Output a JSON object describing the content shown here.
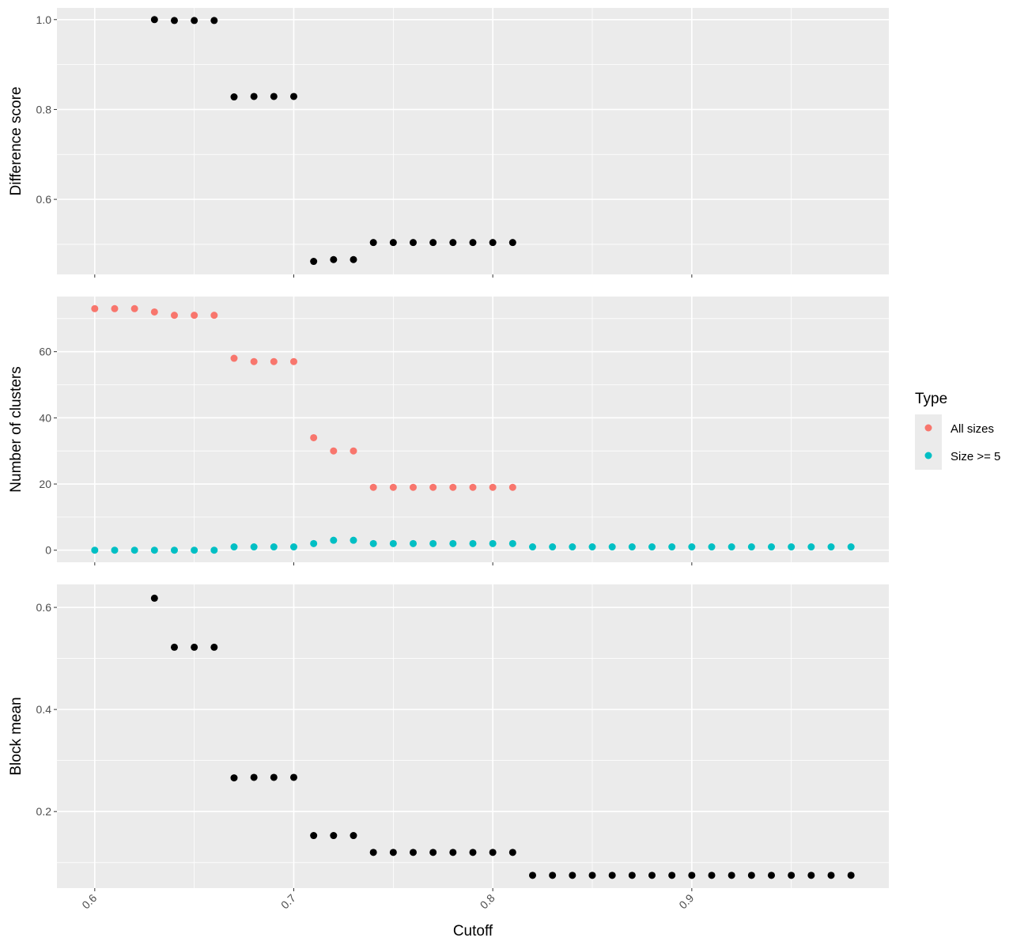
{
  "chart_data": [
    {
      "type": "scatter",
      "title": "",
      "xlabel": "",
      "ylabel": "Difference score",
      "xlim": [
        0.581,
        0.999
      ],
      "ylim": [
        0.433,
        1.026
      ],
      "x_ticks": [
        0.6,
        0.7,
        0.8,
        0.9
      ],
      "y_ticks": [
        0.6,
        0.8,
        1.0
      ],
      "y_tick_labels": [
        "0.6",
        "0.8",
        "1.0"
      ],
      "grid": true,
      "series": [
        {
          "color": "#000000",
          "points": [
            [
              0.63,
              1.0
            ],
            [
              0.64,
              0.998
            ],
            [
              0.65,
              0.998
            ],
            [
              0.66,
              0.998
            ],
            [
              0.67,
              0.828
            ],
            [
              0.68,
              0.829
            ],
            [
              0.69,
              0.829
            ],
            [
              0.7,
              0.829
            ],
            [
              0.71,
              0.462
            ],
            [
              0.72,
              0.466
            ],
            [
              0.73,
              0.466
            ],
            [
              0.74,
              0.504
            ],
            [
              0.75,
              0.504
            ],
            [
              0.76,
              0.504
            ],
            [
              0.77,
              0.504
            ],
            [
              0.78,
              0.504
            ],
            [
              0.79,
              0.504
            ],
            [
              0.8,
              0.504
            ],
            [
              0.81,
              0.504
            ]
          ]
        }
      ]
    },
    {
      "type": "scatter",
      "title": "",
      "xlabel": "",
      "ylabel": "Number of clusters",
      "xlim": [
        0.581,
        0.999
      ],
      "ylim": [
        -3.65,
        76.65
      ],
      "x_ticks": [
        0.6,
        0.7,
        0.8,
        0.9
      ],
      "y_ticks": [
        0,
        20,
        40,
        60
      ],
      "y_tick_labels": [
        "0",
        "20",
        "40",
        "60"
      ],
      "grid": true,
      "series": [
        {
          "name": "All sizes",
          "color": "#F8766D",
          "points": [
            [
              0.6,
              73
            ],
            [
              0.61,
              73
            ],
            [
              0.62,
              73
            ],
            [
              0.63,
              72
            ],
            [
              0.64,
              71
            ],
            [
              0.65,
              71
            ],
            [
              0.66,
              71
            ],
            [
              0.67,
              58
            ],
            [
              0.68,
              57
            ],
            [
              0.69,
              57
            ],
            [
              0.7,
              57
            ],
            [
              0.71,
              34
            ],
            [
              0.72,
              30
            ],
            [
              0.73,
              30
            ],
            [
              0.74,
              19
            ],
            [
              0.75,
              19
            ],
            [
              0.76,
              19
            ],
            [
              0.77,
              19
            ],
            [
              0.78,
              19
            ],
            [
              0.79,
              19
            ],
            [
              0.8,
              19
            ],
            [
              0.81,
              19
            ]
          ]
        },
        {
          "name": "Size >= 5",
          "color": "#00BFC4",
          "points": [
            [
              0.6,
              0
            ],
            [
              0.61,
              0
            ],
            [
              0.62,
              0
            ],
            [
              0.63,
              0
            ],
            [
              0.64,
              0
            ],
            [
              0.65,
              0
            ],
            [
              0.66,
              0
            ],
            [
              0.67,
              1
            ],
            [
              0.68,
              1
            ],
            [
              0.69,
              1
            ],
            [
              0.7,
              1
            ],
            [
              0.71,
              2
            ],
            [
              0.72,
              3
            ],
            [
              0.73,
              3
            ],
            [
              0.74,
              2
            ],
            [
              0.75,
              2
            ],
            [
              0.76,
              2
            ],
            [
              0.77,
              2
            ],
            [
              0.78,
              2
            ],
            [
              0.79,
              2
            ],
            [
              0.8,
              2
            ],
            [
              0.81,
              2
            ],
            [
              0.82,
              1
            ],
            [
              0.83,
              1
            ],
            [
              0.84,
              1
            ],
            [
              0.85,
              1
            ],
            [
              0.86,
              1
            ],
            [
              0.87,
              1
            ],
            [
              0.88,
              1
            ],
            [
              0.89,
              1
            ],
            [
              0.9,
              1
            ],
            [
              0.91,
              1
            ],
            [
              0.92,
              1
            ],
            [
              0.93,
              1
            ],
            [
              0.94,
              1
            ],
            [
              0.95,
              1
            ],
            [
              0.96,
              1
            ],
            [
              0.97,
              1
            ],
            [
              0.98,
              1
            ]
          ]
        }
      ]
    },
    {
      "type": "scatter",
      "title": "",
      "xlabel": "Cutoff",
      "ylabel": "Block mean",
      "xlim": [
        0.581,
        0.999
      ],
      "ylim": [
        0.05,
        0.645
      ],
      "x_ticks": [
        0.6,
        0.7,
        0.8,
        0.9
      ],
      "x_tick_labels": [
        "0.6",
        "0.7",
        "0.8",
        "0.9"
      ],
      "y_ticks": [
        0.2,
        0.4,
        0.6
      ],
      "y_tick_labels": [
        "0.2",
        "0.4",
        "0.6"
      ],
      "grid": true,
      "series": [
        {
          "color": "#000000",
          "points": [
            [
              0.63,
              0.618
            ],
            [
              0.64,
              0.522
            ],
            [
              0.65,
              0.522
            ],
            [
              0.66,
              0.522
            ],
            [
              0.67,
              0.266
            ],
            [
              0.68,
              0.267
            ],
            [
              0.69,
              0.267
            ],
            [
              0.7,
              0.267
            ],
            [
              0.71,
              0.153
            ],
            [
              0.72,
              0.153
            ],
            [
              0.73,
              0.153
            ],
            [
              0.74,
              0.12
            ],
            [
              0.75,
              0.12
            ],
            [
              0.76,
              0.12
            ],
            [
              0.77,
              0.12
            ],
            [
              0.78,
              0.12
            ],
            [
              0.79,
              0.12
            ],
            [
              0.8,
              0.12
            ],
            [
              0.81,
              0.12
            ],
            [
              0.82,
              0.075
            ],
            [
              0.83,
              0.075
            ],
            [
              0.84,
              0.075
            ],
            [
              0.85,
              0.075
            ],
            [
              0.86,
              0.075
            ],
            [
              0.87,
              0.075
            ],
            [
              0.88,
              0.075
            ],
            [
              0.89,
              0.075
            ],
            [
              0.9,
              0.075
            ],
            [
              0.91,
              0.075
            ],
            [
              0.92,
              0.075
            ],
            [
              0.93,
              0.075
            ],
            [
              0.94,
              0.075
            ],
            [
              0.95,
              0.075
            ],
            [
              0.96,
              0.075
            ],
            [
              0.97,
              0.075
            ],
            [
              0.98,
              0.075
            ]
          ]
        }
      ]
    }
  ],
  "legend": {
    "title": "Type",
    "placement": "right",
    "items": [
      {
        "label": "All sizes",
        "color": "#F8766D"
      },
      {
        "label": "Size >= 5",
        "color": "#00BFC4"
      }
    ]
  },
  "colors": {
    "panel_background": "#EBEBEB",
    "grid_major": "#FFFFFF"
  }
}
